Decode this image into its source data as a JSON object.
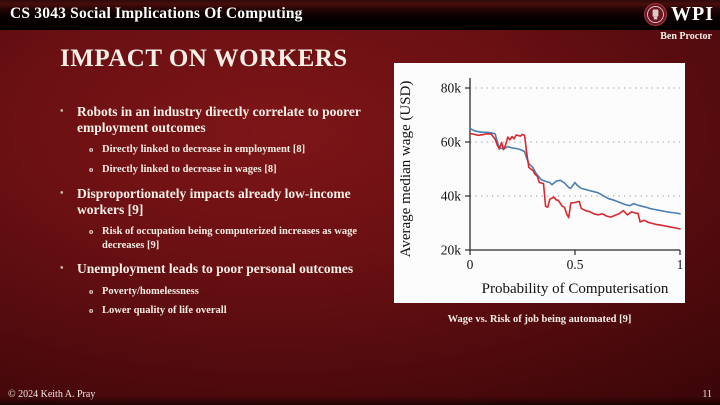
{
  "slide": {
    "course_title": "CS 3043 Social Implications Of Computing",
    "author": "Ben Proctor",
    "logo_text": "WPI",
    "title": "IMPACT ON WORKERS",
    "bullets": [
      {
        "text": "Robots in an industry directly correlate to poorer employment outcomes",
        "subs": [
          "Directly linked to decrease in employment [8]",
          "Directly linked to decrease in wages [8]"
        ]
      },
      {
        "text": "Disproportionately impacts already low-income workers [9]",
        "subs": [
          "Risk of occupation being computerized increases as wage decreases [9]"
        ]
      },
      {
        "text": "Unemployment leads to poor personal outcomes",
        "subs": [
          "Poverty/homelessness",
          "Lower quality of life overall"
        ]
      }
    ],
    "figure_caption": "Wage vs. Risk of job being automated [9]",
    "footer": {
      "copyright": "© 2024 Keith A. Pray",
      "page_number": "11"
    }
  },
  "colors": {
    "slide_bg": "#6b1013",
    "header_bar": "#000000",
    "panel_bg": "#fcfcfc",
    "line_blue": "#4a7eb5",
    "line_red": "#d6282e",
    "text": "#f6f0e8"
  },
  "chart_data": {
    "type": "line",
    "title": "",
    "xlabel": "Probability of Computerisation",
    "ylabel": "Average median wage (USD)",
    "unit_note": "y values in thousands of USD",
    "xlim": [
      0,
      1
    ],
    "ylim": [
      20,
      80
    ],
    "x_ticks": [
      0,
      0.5,
      1
    ],
    "x_tick_labels": [
      "0",
      "0.5",
      "1"
    ],
    "y_ticks": [
      20,
      40,
      60,
      80
    ],
    "y_tick_labels": [
      "20k",
      "40k",
      "60k",
      "80k"
    ],
    "grid": "dotted horizontal gridlines at 40k, 60k, 80k",
    "legend": "none",
    "series": [
      {
        "name": "series-blue",
        "color": "#4a7eb5",
        "points": [
          [
            0,
            65
          ],
          [
            0.02,
            64.2
          ],
          [
            0.04,
            63.8
          ],
          [
            0.06,
            63.6
          ],
          [
            0.08,
            63.6
          ],
          [
            0.1,
            63.4
          ],
          [
            0.12,
            63.0
          ],
          [
            0.13,
            60.0
          ],
          [
            0.14,
            57.8
          ],
          [
            0.16,
            57.4
          ],
          [
            0.18,
            58.3
          ],
          [
            0.2,
            57.8
          ],
          [
            0.22,
            57.6
          ],
          [
            0.24,
            57.2
          ],
          [
            0.26,
            56.5
          ],
          [
            0.27,
            54.0
          ],
          [
            0.28,
            52.0
          ],
          [
            0.3,
            50.5
          ],
          [
            0.31,
            49.0
          ],
          [
            0.32,
            47.8
          ],
          [
            0.34,
            46.0
          ],
          [
            0.36,
            45.4
          ],
          [
            0.38,
            45.0
          ],
          [
            0.39,
            44.2
          ],
          [
            0.41,
            45.5
          ],
          [
            0.43,
            45.8
          ],
          [
            0.45,
            44.8
          ],
          [
            0.47,
            43.2
          ],
          [
            0.48,
            42.9
          ],
          [
            0.5,
            45.0
          ],
          [
            0.51,
            44.0
          ],
          [
            0.53,
            42.8
          ],
          [
            0.55,
            42.4
          ],
          [
            0.57,
            42.0
          ],
          [
            0.59,
            41.6
          ],
          [
            0.61,
            41.2
          ],
          [
            0.63,
            40.3
          ],
          [
            0.65,
            39.4
          ],
          [
            0.66,
            39.0
          ],
          [
            0.68,
            38.6
          ],
          [
            0.7,
            38.0
          ],
          [
            0.72,
            37.4
          ],
          [
            0.74,
            36.8
          ],
          [
            0.76,
            36.4
          ],
          [
            0.78,
            37.2
          ],
          [
            0.8,
            36.6
          ],
          [
            0.82,
            36.2
          ],
          [
            0.84,
            35.8
          ],
          [
            0.86,
            35.3
          ],
          [
            0.88,
            35.0
          ],
          [
            0.9,
            34.7
          ],
          [
            0.92,
            34.4
          ],
          [
            0.94,
            34.1
          ],
          [
            0.96,
            33.9
          ],
          [
            0.98,
            33.7
          ],
          [
            1.0,
            33.4
          ]
        ]
      },
      {
        "name": "series-red",
        "color": "#d6282e",
        "points": [
          [
            0,
            63.2
          ],
          [
            0.02,
            62.8
          ],
          [
            0.04,
            62.5
          ],
          [
            0.06,
            62.7
          ],
          [
            0.08,
            63.0
          ],
          [
            0.1,
            63.0
          ],
          [
            0.12,
            61.0
          ],
          [
            0.13,
            58.8
          ],
          [
            0.14,
            57.4
          ],
          [
            0.15,
            59.8
          ],
          [
            0.16,
            57.2
          ],
          [
            0.17,
            59.0
          ],
          [
            0.18,
            61.8
          ],
          [
            0.19,
            60.8
          ],
          [
            0.2,
            62.0
          ],
          [
            0.21,
            61.2
          ],
          [
            0.22,
            62.6
          ],
          [
            0.24,
            62.2
          ],
          [
            0.25,
            62.8
          ],
          [
            0.26,
            62.4
          ],
          [
            0.27,
            56.0
          ],
          [
            0.28,
            50.6
          ],
          [
            0.29,
            50.0
          ],
          [
            0.3,
            49.4
          ],
          [
            0.31,
            48.0
          ],
          [
            0.32,
            47.4
          ],
          [
            0.33,
            45.0
          ],
          [
            0.34,
            44.8
          ],
          [
            0.35,
            44.6
          ],
          [
            0.36,
            36.2
          ],
          [
            0.37,
            35.8
          ],
          [
            0.38,
            38.8
          ],
          [
            0.4,
            39.6
          ],
          [
            0.41,
            38.6
          ],
          [
            0.42,
            38.4
          ],
          [
            0.44,
            36.2
          ],
          [
            0.45,
            35.8
          ],
          [
            0.46,
            33.4
          ],
          [
            0.47,
            32.0
          ],
          [
            0.48,
            37.4
          ],
          [
            0.5,
            37.6
          ],
          [
            0.52,
            38.0
          ],
          [
            0.53,
            35.4
          ],
          [
            0.55,
            34.6
          ],
          [
            0.57,
            34.2
          ],
          [
            0.59,
            33.4
          ],
          [
            0.61,
            33.0
          ],
          [
            0.63,
            33.4
          ],
          [
            0.65,
            32.6
          ],
          [
            0.67,
            32.2
          ],
          [
            0.69,
            32.8
          ],
          [
            0.71,
            33.4
          ],
          [
            0.73,
            34.6
          ],
          [
            0.75,
            33.0
          ],
          [
            0.77,
            34.2
          ],
          [
            0.79,
            33.6
          ],
          [
            0.8,
            33.6
          ],
          [
            0.81,
            30.4
          ],
          [
            0.83,
            31.0
          ],
          [
            0.85,
            30.2
          ],
          [
            0.87,
            29.8
          ],
          [
            0.89,
            29.4
          ],
          [
            0.91,
            29.2
          ],
          [
            0.93,
            28.9
          ],
          [
            0.95,
            28.6
          ],
          [
            0.97,
            28.3
          ],
          [
            1.0,
            27.8
          ]
        ]
      }
    ]
  }
}
